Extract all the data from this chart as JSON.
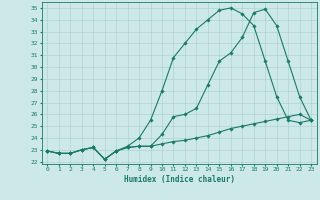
{
  "title": "",
  "xlabel": "Humidex (Indice chaleur)",
  "bg_color": "#cce8e8",
  "line_color": "#1a7a6a",
  "grid_color": "#aacccc",
  "xlim": [
    -0.5,
    23.5
  ],
  "ylim": [
    21.8,
    35.5
  ],
  "yticks": [
    22,
    23,
    24,
    25,
    26,
    27,
    28,
    29,
    30,
    31,
    32,
    33,
    34,
    35
  ],
  "xticks": [
    0,
    1,
    2,
    3,
    4,
    5,
    6,
    7,
    8,
    9,
    10,
    11,
    12,
    13,
    14,
    15,
    16,
    17,
    18,
    19,
    20,
    21,
    22,
    23
  ],
  "line1_x": [
    0,
    1,
    2,
    3,
    4,
    5,
    6,
    7,
    8,
    9,
    10,
    11,
    12,
    13,
    14,
    15,
    16,
    17,
    18,
    19,
    20,
    21,
    22,
    23
  ],
  "line1_y": [
    22.9,
    22.7,
    22.7,
    23.0,
    23.2,
    22.2,
    22.9,
    23.2,
    23.3,
    23.3,
    24.3,
    25.8,
    26.0,
    26.5,
    28.5,
    30.5,
    31.2,
    32.5,
    34.6,
    34.9,
    33.5,
    30.5,
    27.5,
    25.5
  ],
  "line2_x": [
    0,
    1,
    2,
    3,
    4,
    5,
    6,
    7,
    8,
    9,
    10,
    11,
    12,
    13,
    14,
    15,
    16,
    17,
    18,
    19,
    20,
    21,
    22,
    23
  ],
  "line2_y": [
    22.9,
    22.7,
    22.7,
    23.0,
    23.2,
    22.2,
    22.9,
    23.3,
    24.0,
    25.5,
    28.0,
    30.8,
    32.0,
    33.2,
    34.0,
    34.8,
    35.0,
    34.5,
    33.5,
    30.5,
    27.5,
    25.5,
    25.3,
    25.5
  ],
  "line3_x": [
    0,
    1,
    2,
    3,
    4,
    5,
    6,
    7,
    8,
    9,
    10,
    11,
    12,
    13,
    14,
    15,
    16,
    17,
    18,
    19,
    20,
    21,
    22,
    23
  ],
  "line3_y": [
    22.9,
    22.7,
    22.7,
    23.0,
    23.2,
    22.2,
    22.9,
    23.2,
    23.3,
    23.3,
    23.5,
    23.7,
    23.8,
    24.0,
    24.2,
    24.5,
    24.8,
    25.0,
    25.2,
    25.4,
    25.6,
    25.8,
    26.0,
    25.5
  ],
  "xlabel_fontsize": 5.5,
  "tick_fontsize": 4.5
}
